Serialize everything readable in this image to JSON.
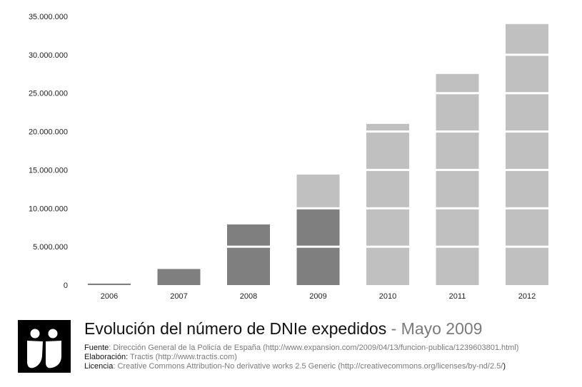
{
  "chart_data": {
    "type": "bar",
    "categories": [
      "2006",
      "2007",
      "2008",
      "2009",
      "2010",
      "2011",
      "2012"
    ],
    "series": [
      {
        "values": [
          200000,
          2100000,
          7900000,
          9900000,
          0,
          0,
          0
        ]
      },
      {
        "values": [
          0,
          0,
          0,
          4500000,
          21000000,
          27500000,
          34000000
        ]
      }
    ],
    "ylim": [
      0,
      35000000
    ],
    "yticks": [
      0,
      5000000,
      10000000,
      15000000,
      20000000,
      25000000,
      30000000,
      35000000
    ],
    "ytick_labels": [
      "0",
      "5.000.000",
      "10.000.000",
      "15.000.000",
      "20.000.000",
      "25.000.000",
      "30.000.000",
      "35.000.000"
    ],
    "colors": {
      "dark": "#7f7f7f",
      "light": "#c0c0c0",
      "separator": "#ffffff"
    },
    "grid": false,
    "legend": "none",
    "title": "Evolución del número de DNIe expedidos",
    "subtitle": "Mayo 2009"
  },
  "footer": {
    "title": "Evolución del número de DNIe expedidos",
    "title_sep": " - ",
    "title_date": "Mayo 2009",
    "source_label": "Fuente",
    "source_value": ": Dirección General de la Policía de España (http://www.expansion.com/2009/04/13/funcion-publica/1239603801.html)",
    "made_label": "Elaboración:",
    "made_value": " Tractis (http://www.tractis.com)",
    "license_label": "Licencia",
    "license_value": ": Creative Commons Attribution-No derivative works 2.5 Generic (http://creativecommons.org/licenses/by-nd/2.5/",
    "license_end": ")",
    "logo_icon": "two-person-logo-icon"
  }
}
